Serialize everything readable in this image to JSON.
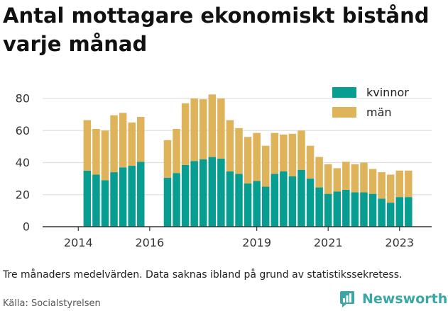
{
  "title": "Antal mottagare ekonomiskt bistånd varje månad",
  "note": "Tre månaders medelvärden. Data saknas ibland på grund av statistikssekretess.",
  "source": "Källa: Socialstyrelsen",
  "brand": {
    "name": "Newsworthy",
    "icon": "bar-chart-logo-icon"
  },
  "colors": {
    "kvinnor": "#079e91",
    "man": "#dfb35a",
    "grid": "#e0e0e0",
    "axis": "#333333",
    "brand": "#3aa6a6"
  },
  "chart_data": {
    "type": "bar",
    "stacked": true,
    "title": "Antal mottagare ekonomiskt bistånd varje månad",
    "xlabel": "",
    "ylabel": "",
    "ylim": [
      0,
      80
    ],
    "xlim": [
      2013.0,
      2023.9
    ],
    "yticks": [
      0,
      20,
      40,
      60,
      80
    ],
    "xticks": [
      2014,
      2016,
      2019,
      2021,
      2023
    ],
    "grid": true,
    "legend": "top-right",
    "x": [
      2014.25,
      2014.5,
      2014.75,
      2015.0,
      2015.25,
      2015.5,
      2015.75,
      2016.5,
      2016.75,
      2017.0,
      2017.25,
      2017.5,
      2017.75,
      2018.0,
      2018.25,
      2018.5,
      2018.75,
      2019.0,
      2019.25,
      2019.5,
      2019.75,
      2020.0,
      2020.25,
      2020.5,
      2020.75,
      2021.0,
      2021.25,
      2021.5,
      2021.75,
      2022.0,
      2022.25,
      2022.5,
      2022.75,
      2023.0,
      2023.25
    ],
    "series": [
      {
        "name": "kvinnor",
        "values": [
          35,
          32.5,
          29,
          34,
          37,
          38,
          40.5,
          30.5,
          33.5,
          38.5,
          41,
          42,
          43.5,
          42.5,
          34.5,
          33,
          27,
          28.5,
          25,
          33,
          34.5,
          31.5,
          35.5,
          30,
          24.5,
          20.5,
          22,
          23,
          21.5,
          21.5,
          20.5,
          17.5,
          15,
          18.5,
          18.5
        ]
      },
      {
        "name": "män",
        "values": [
          31.5,
          28.5,
          31,
          35.5,
          34,
          27,
          28,
          23.5,
          27.5,
          38.5,
          39,
          37.5,
          39,
          37.5,
          32,
          28.5,
          29,
          30,
          25.5,
          25.5,
          23,
          26.5,
          24.5,
          20.5,
          19,
          18.5,
          14.5,
          17.5,
          17.5,
          18.5,
          15.5,
          16.5,
          17.5,
          16.5,
          16.5
        ]
      }
    ]
  }
}
